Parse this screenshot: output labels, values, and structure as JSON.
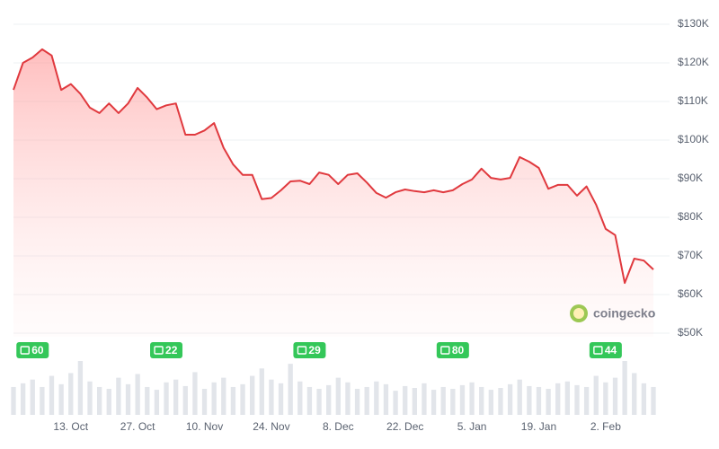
{
  "chart_data": {
    "type": "area",
    "categories": [
      "null0",
      "null1",
      "null2",
      "null3",
      "null4",
      "null5",
      "13. Oct",
      "null7",
      "null8",
      "null9",
      "null10",
      "null11",
      "null12",
      "27. Oct",
      "null14",
      "null15",
      "null16",
      "null17",
      "null18",
      "null19",
      "10. Nov",
      "null21",
      "null22",
      "null23",
      "null24",
      "null25",
      "null26",
      "24. Nov",
      "null28",
      "null29",
      "null30",
      "null31",
      "null32",
      "null33",
      "8. Dec",
      "null35",
      "null36",
      "null37",
      "null38",
      "null39",
      "null40",
      "22. Dec",
      "null42",
      "null43",
      "null44",
      "null45",
      "null46",
      "null47",
      "5. Jan",
      "null49",
      "null50",
      "null51",
      "null52",
      "null53",
      "null54",
      "19. Jan",
      "null56",
      "null57",
      "null58",
      "null59",
      "null60",
      "null61",
      "2. Feb",
      "null63",
      "null64",
      "null65",
      "null66",
      "null67"
    ],
    "values": [
      113000,
      120000,
      121400,
      123500,
      121900,
      113000,
      114500,
      112000,
      108400,
      107000,
      109500,
      107000,
      109500,
      113500,
      111000,
      108000,
      109000,
      109500,
      101400,
      101400,
      102500,
      104400,
      98000,
      93700,
      91000,
      91000,
      84700,
      85000,
      87000,
      89300,
      89500,
      88600,
      91600,
      91000,
      88600,
      91000,
      91400,
      89000,
      86300,
      85100,
      86500,
      87200,
      86800,
      86500,
      87000,
      86500,
      87000,
      88600,
      89800,
      92600,
      90200,
      89800,
      90200,
      95600,
      94400,
      92800,
      87400,
      88400,
      88400,
      85600,
      88000,
      83300,
      77000,
      75400,
      63000,
      69300,
      68800,
      66500
    ],
    "color": "#e0393e",
    "volume": [
      30,
      34,
      38,
      30,
      42,
      33,
      45,
      58,
      36,
      30,
      28,
      40,
      33,
      44,
      30,
      27,
      35,
      38,
      31,
      46,
      28,
      35,
      40,
      30,
      33,
      42,
      50,
      38,
      34,
      55,
      36,
      30,
      28,
      32,
      40,
      35,
      28,
      30,
      36,
      33,
      26,
      31,
      29,
      34,
      27,
      30,
      28,
      32,
      35,
      30,
      27,
      29,
      33,
      38,
      31,
      30,
      28,
      34,
      36,
      32,
      30,
      42,
      35,
      40,
      58,
      45,
      34,
      30
    ],
    "volume_color": "#e2e5ea",
    "news": [
      null,
      null,
      60,
      null,
      null,
      null,
      null,
      null,
      null,
      null,
      null,
      null,
      null,
      null,
      null,
      null,
      22,
      null,
      null,
      null,
      null,
      null,
      null,
      null,
      null,
      null,
      null,
      null,
      null,
      null,
      null,
      29,
      null,
      null,
      null,
      null,
      null,
      null,
      null,
      null,
      null,
      null,
      null,
      null,
      null,
      null,
      80,
      null,
      null,
      null,
      null,
      null,
      null,
      null,
      null,
      null,
      null,
      null,
      null,
      null,
      null,
      null,
      44,
      null,
      null,
      null,
      null,
      null
    ],
    "news_color": "#34c759",
    "ylim": [
      50000,
      130000
    ],
    "yticks": [
      {
        "value": 50000,
        "label": "$50K"
      },
      {
        "value": 60000,
        "label": "$60K"
      },
      {
        "value": 70000,
        "label": "$70K"
      },
      {
        "value": 80000,
        "label": "$80K"
      },
      {
        "value": 90000,
        "label": "$90K"
      },
      {
        "value": 100000,
        "label": "$100K"
      },
      {
        "value": 110000,
        "label": "$110K"
      },
      {
        "value": 120000,
        "label": "$120K"
      },
      {
        "value": 130000,
        "label": "$130K"
      }
    ],
    "grid": true,
    "watermark": "coingecko"
  }
}
